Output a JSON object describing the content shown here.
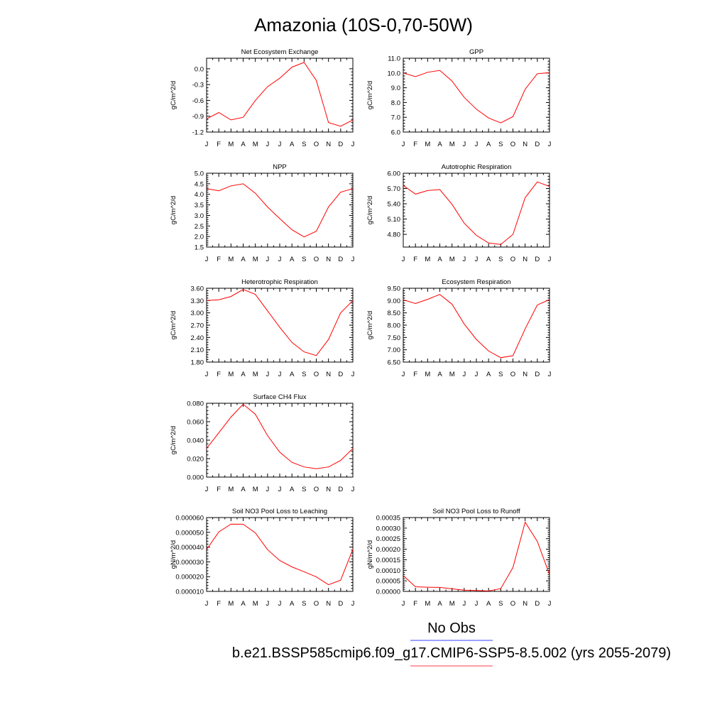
{
  "page": {
    "title": "Amazonia (10S-0,70-50W)",
    "legend": {
      "obs_label": "No Obs",
      "model_label": "b.e21.BSSP585cmip6.f09_g17.CMIP6-SSP5-8.5.002 (yrs 2055-2079)",
      "obs_color": "#7b83ff",
      "model_color": "#ff7f8a"
    },
    "line_color": "#ff0000"
  },
  "chart_data": [
    {
      "type": "line",
      "title": "Net Ecosystem Exchange",
      "ylabel": "gC/m^2/d",
      "categories": [
        "J",
        "F",
        "M",
        "A",
        "M",
        "J",
        "J",
        "A",
        "S",
        "O",
        "N",
        "D",
        "J"
      ],
      "ylim": [
        -1.2,
        0.2
      ],
      "yticks": [
        -1.2,
        -0.9,
        -0.6,
        -0.3,
        0.0
      ],
      "ytick_labels": [
        "-1.2",
        "-0.9",
        "-0.6",
        "-0.3",
        "0.0"
      ],
      "series": [
        {
          "values": [
            -0.95,
            -0.83,
            -0.97,
            -0.92,
            -0.6,
            -0.34,
            -0.18,
            0.03,
            0.12,
            -0.22,
            -1.02,
            -1.09,
            -0.97
          ]
        }
      ]
    },
    {
      "type": "line",
      "title": "GPP",
      "ylabel": "gC/m^2/d",
      "categories": [
        "J",
        "F",
        "M",
        "A",
        "M",
        "J",
        "J",
        "A",
        "S",
        "O",
        "N",
        "D",
        "J"
      ],
      "ylim": [
        6.0,
        11.0
      ],
      "yticks": [
        6.0,
        7.0,
        8.0,
        9.0,
        10.0,
        11.0
      ],
      "ytick_labels": [
        "6.0",
        "7.0",
        "8.0",
        "9.0",
        "10.0",
        "11.0"
      ],
      "series": [
        {
          "values": [
            10.0,
            9.75,
            10.05,
            10.18,
            9.45,
            8.35,
            7.55,
            6.95,
            6.62,
            7.05,
            8.9,
            9.95,
            10.02
          ]
        }
      ]
    },
    {
      "type": "line",
      "title": "NPP",
      "ylabel": "gC/m^2/d",
      "categories": [
        "J",
        "F",
        "M",
        "A",
        "M",
        "J",
        "J",
        "A",
        "S",
        "O",
        "N",
        "D",
        "J"
      ],
      "ylim": [
        1.5,
        5.0
      ],
      "yticks": [
        1.5,
        2.0,
        2.5,
        3.0,
        3.5,
        4.0,
        4.5,
        5.0
      ],
      "ytick_labels": [
        "1.5",
        "2.0",
        "2.5",
        "3.0",
        "3.5",
        "4.0",
        "4.5",
        "5.0"
      ],
      "series": [
        {
          "values": [
            4.27,
            4.17,
            4.4,
            4.5,
            4.05,
            3.4,
            2.85,
            2.32,
            1.98,
            2.25,
            3.4,
            4.1,
            4.27
          ]
        }
      ]
    },
    {
      "type": "line",
      "title": "Autotrophic Respiration",
      "ylabel": "gC/m^2/d",
      "categories": [
        "J",
        "F",
        "M",
        "A",
        "M",
        "J",
        "J",
        "A",
        "S",
        "O",
        "N",
        "D",
        "J"
      ],
      "ylim": [
        4.55,
        6.0
      ],
      "yticks": [
        4.8,
        5.1,
        5.4,
        5.7,
        6.0
      ],
      "ytick_labels": [
        "4.80",
        "5.10",
        "5.40",
        "5.70",
        "6.00"
      ],
      "series": [
        {
          "values": [
            5.76,
            5.59,
            5.66,
            5.68,
            5.39,
            5.02,
            4.78,
            4.63,
            4.6,
            4.8,
            5.52,
            5.83,
            5.74
          ]
        }
      ]
    },
    {
      "type": "line",
      "title": "Heterotrophic Respiration",
      "ylabel": "gC/m^2/d",
      "categories": [
        "J",
        "F",
        "M",
        "A",
        "M",
        "J",
        "J",
        "A",
        "S",
        "O",
        "N",
        "D",
        "J"
      ],
      "ylim": [
        1.8,
        3.6
      ],
      "yticks": [
        1.8,
        2.1,
        2.4,
        2.7,
        3.0,
        3.3,
        3.6
      ],
      "ytick_labels": [
        "1.80",
        "2.10",
        "2.40",
        "2.70",
        "3.00",
        "3.30",
        "3.60"
      ],
      "series": [
        {
          "values": [
            3.3,
            3.32,
            3.4,
            3.57,
            3.45,
            3.05,
            2.65,
            2.28,
            2.05,
            1.96,
            2.35,
            3.0,
            3.3
          ]
        }
      ]
    },
    {
      "type": "line",
      "title": "Ecosystem Respiration",
      "ylabel": "gC/m^2/d",
      "categories": [
        "J",
        "F",
        "M",
        "A",
        "M",
        "J",
        "J",
        "A",
        "S",
        "O",
        "N",
        "D",
        "J"
      ],
      "ylim": [
        6.5,
        9.5
      ],
      "yticks": [
        6.5,
        7.0,
        7.5,
        8.0,
        8.5,
        9.0,
        9.5
      ],
      "ytick_labels": [
        "6.50",
        "7.00",
        "7.50",
        "8.00",
        "8.50",
        "9.00",
        "9.50"
      ],
      "series": [
        {
          "values": [
            9.03,
            8.88,
            9.05,
            9.25,
            8.85,
            8.05,
            7.42,
            6.95,
            6.68,
            6.76,
            7.85,
            8.82,
            9.04
          ]
        }
      ]
    },
    {
      "type": "line",
      "title": "Surface CH4 Flux",
      "ylabel": "gC/m^2/d",
      "categories": [
        "J",
        "F",
        "M",
        "A",
        "M",
        "J",
        "J",
        "A",
        "S",
        "O",
        "N",
        "D",
        "J"
      ],
      "ylim": [
        0.0,
        0.08
      ],
      "yticks": [
        0.0,
        0.02,
        0.04,
        0.06,
        0.08
      ],
      "ytick_labels": [
        "0.000",
        "0.020",
        "0.040",
        "0.060",
        "0.080"
      ],
      "series": [
        {
          "values": [
            0.031,
            0.048,
            0.065,
            0.079,
            0.068,
            0.045,
            0.027,
            0.016,
            0.011,
            0.009,
            0.011,
            0.018,
            0.031
          ]
        }
      ]
    },
    {
      "type": "line",
      "title": "Soil NO3 Pool Loss to Leaching",
      "ylabel": "gN/m^2/d",
      "categories": [
        "J",
        "F",
        "M",
        "A",
        "M",
        "J",
        "J",
        "A",
        "S",
        "O",
        "N",
        "D",
        "J"
      ],
      "ylim": [
        1e-05,
        6e-05
      ],
      "yticks": [
        1e-05,
        2e-05,
        3e-05,
        4e-05,
        5e-05,
        6e-05
      ],
      "ytick_labels": [
        "0.000010",
        "0.000020",
        "0.000030",
        "0.000040",
        "0.000050",
        "0.000060"
      ],
      "series": [
        {
          "values": [
            3.83e-05,
            5.03e-05,
            5.56e-05,
            5.55e-05,
            4.96e-05,
            3.83e-05,
            3.09e-05,
            2.66e-05,
            2.33e-05,
            1.98e-05,
            1.45e-05,
            1.76e-05,
            3.85e-05
          ]
        }
      ]
    },
    {
      "type": "line",
      "title": "Soil NO3 Pool Loss to Runoff",
      "ylabel": "gN/m^2/d",
      "categories": [
        "J",
        "F",
        "M",
        "A",
        "M",
        "J",
        "J",
        "A",
        "S",
        "O",
        "N",
        "D",
        "J"
      ],
      "ylim": [
        0.0,
        0.00035
      ],
      "yticks": [
        0.0,
        5e-05,
        0.0001,
        0.00015,
        0.0002,
        0.00025,
        0.0003,
        0.00035
      ],
      "ytick_labels": [
        "0.00000",
        "0.00005",
        "0.00010",
        "0.00015",
        "0.00020",
        "0.00025",
        "0.00030",
        "0.00035"
      ],
      "series": [
        {
          "values": [
            7.5e-05,
            2.2e-05,
            2e-05,
            1.9e-05,
            1.2e-05,
            6e-06,
            4e-06,
            2e-06,
            1.3e-05,
            0.000113,
            0.000328,
            0.000237,
            8e-05
          ]
        }
      ]
    }
  ]
}
